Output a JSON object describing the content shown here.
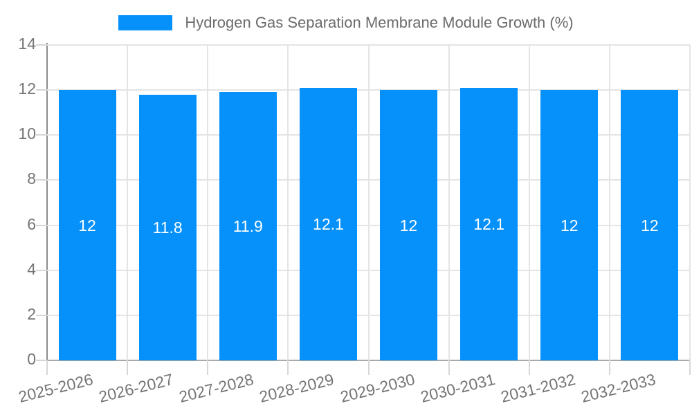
{
  "chart_data": {
    "type": "bar",
    "title": "Hydrogen Gas Separation Membrane Module Growth (%)",
    "categories": [
      "2025-2026",
      "2026-2027",
      "2027-2028",
      "2028-2029",
      "2029-2030",
      "2030-2031",
      "2031-2032",
      "2032-2033"
    ],
    "values": [
      12,
      11.8,
      11.9,
      12.1,
      12,
      12.1,
      12,
      12
    ],
    "value_labels": [
      "12",
      "11.8",
      "11.9",
      "12.1",
      "12",
      "12.1",
      "12",
      "12"
    ],
    "xlabel": "",
    "ylabel": "",
    "ylim": [
      0,
      14
    ],
    "yticks": [
      0,
      2,
      4,
      6,
      8,
      10,
      12,
      14
    ],
    "grid": true,
    "legend_position": "top-center",
    "x_label_rotation_deg": -14
  },
  "legend": {
    "label": "Hydrogen Gas Separation Membrane Module Growth (%)"
  },
  "colors": {
    "bar": "#0590FA",
    "bar_label_text": "#ffffff",
    "grid": "#e4e4e4",
    "axis_line": "#8c8c8c",
    "baseline": "#a9a9a9",
    "tick": "#d6d6d6",
    "axis_text": "#757575",
    "legend_text": "#6b6b6b",
    "background": "#ffffff"
  }
}
